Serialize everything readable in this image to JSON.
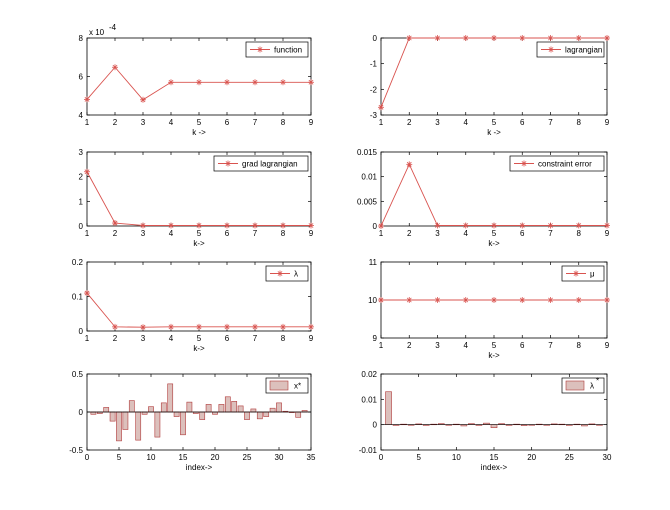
{
  "colors": {
    "line": "#d9534f",
    "bar_fill": "#dcc0bc",
    "bar_stroke": "#b03a3a",
    "axis": "#000000"
  },
  "chart_data": [
    {
      "type": "line",
      "id": "function",
      "x": [
        1,
        2,
        3,
        4,
        5,
        6,
        7,
        8,
        9
      ],
      "y": [
        0.000481,
        0.000648,
        0.000479,
        0.00057,
        0.00057,
        0.00057,
        0.00057,
        0.00057,
        0.00057
      ],
      "xlim": [
        1,
        9
      ],
      "ylim": [
        0.0004,
        0.0008
      ],
      "xticks": [
        1,
        2,
        3,
        4,
        5,
        6,
        7,
        8,
        9
      ],
      "xtick_labels": [
        "1",
        "2",
        "3",
        "4",
        "5",
        "6",
        "7",
        "8",
        "9"
      ],
      "yticks": [
        0.0004,
        0.0006,
        0.0008
      ],
      "ytick_labels": [
        "4",
        "6",
        "8"
      ],
      "exponent_label": "x 10",
      "exponent_power": "-4",
      "xlabel": "k ->",
      "legend": "function",
      "legend_position": "top-right"
    },
    {
      "type": "line",
      "id": "lagrangian",
      "x": [
        1,
        2,
        3,
        4,
        5,
        6,
        7,
        8,
        9
      ],
      "y": [
        -2.7,
        0,
        0,
        0,
        0,
        0,
        0,
        0,
        0
      ],
      "xlim": [
        1,
        9
      ],
      "ylim": [
        -3,
        0
      ],
      "xticks": [
        1,
        2,
        3,
        4,
        5,
        6,
        7,
        8,
        9
      ],
      "xtick_labels": [
        "1",
        "2",
        "3",
        "4",
        "5",
        "6",
        "7",
        "8",
        "9"
      ],
      "yticks": [
        -3,
        -2,
        -1,
        0
      ],
      "ytick_labels": [
        "-3",
        "-2",
        "-1",
        "0"
      ],
      "xlabel": "k ->",
      "legend": "lagrangian",
      "legend_position": "top-right"
    },
    {
      "type": "line",
      "id": "grad-lagrangian",
      "x": [
        1,
        2,
        3,
        4,
        5,
        6,
        7,
        8,
        9
      ],
      "y": [
        2.2,
        0.12,
        0.02,
        0.02,
        0.02,
        0.02,
        0.02,
        0.02,
        0.02
      ],
      "xlim": [
        1,
        9
      ],
      "ylim": [
        0,
        3
      ],
      "xticks": [
        1,
        2,
        3,
        4,
        5,
        6,
        7,
        8,
        9
      ],
      "xtick_labels": [
        "1",
        "2",
        "3",
        "4",
        "5",
        "6",
        "7",
        "8",
        "9"
      ],
      "yticks": [
        0,
        1,
        2,
        3
      ],
      "ytick_labels": [
        "0",
        "1",
        "2",
        "3"
      ],
      "xlabel": "k->",
      "legend": "grad lagrangian",
      "legend_position": "top-right"
    },
    {
      "type": "line",
      "id": "constraint-error",
      "x": [
        1,
        2,
        3,
        4,
        5,
        6,
        7,
        8,
        9
      ],
      "y": [
        0,
        0.0125,
        0.0001,
        0.0001,
        0.0001,
        0.0001,
        0.0001,
        0.0001,
        0.0001
      ],
      "xlim": [
        1,
        9
      ],
      "ylim": [
        0,
        0.015
      ],
      "xticks": [
        1,
        2,
        3,
        4,
        5,
        6,
        7,
        8,
        9
      ],
      "xtick_labels": [
        "1",
        "2",
        "3",
        "4",
        "5",
        "6",
        "7",
        "8",
        "9"
      ],
      "yticks": [
        0,
        0.005,
        0.01,
        0.015
      ],
      "ytick_labels": [
        "0",
        "0.005",
        "0.01",
        "0.015"
      ],
      "xlabel": "k->",
      "legend": "constraint error",
      "legend_position": "top-right"
    },
    {
      "type": "line",
      "id": "lambda",
      "x": [
        1,
        2,
        3,
        4,
        5,
        6,
        7,
        8,
        9
      ],
      "y": [
        0.11,
        0.012,
        0.011,
        0.012,
        0.012,
        0.012,
        0.012,
        0.012,
        0.012
      ],
      "xlim": [
        1,
        9
      ],
      "ylim": [
        0,
        0.2
      ],
      "xticks": [
        1,
        2,
        3,
        4,
        5,
        6,
        7,
        8,
        9
      ],
      "xtick_labels": [
        "1",
        "2",
        "3",
        "4",
        "5",
        "6",
        "7",
        "8",
        "9"
      ],
      "yticks": [
        0,
        0.1,
        0.2
      ],
      "ytick_labels": [
        "0",
        "0.1",
        "0.2"
      ],
      "xlabel": "k->",
      "legend": "λ",
      "legend_position": "top-right"
    },
    {
      "type": "line",
      "id": "mu",
      "x": [
        1,
        2,
        3,
        4,
        5,
        6,
        7,
        8,
        9
      ],
      "y": [
        10,
        10,
        10,
        10,
        10,
        10,
        10,
        10,
        10
      ],
      "xlim": [
        1,
        9
      ],
      "ylim": [
        9,
        11
      ],
      "xticks": [
        1,
        2,
        3,
        4,
        5,
        6,
        7,
        8,
        9
      ],
      "xtick_labels": [
        "1",
        "2",
        "3",
        "4",
        "5",
        "6",
        "7",
        "8",
        "9"
      ],
      "yticks": [
        9,
        10,
        11
      ],
      "ytick_labels": [
        "9",
        "10",
        "11"
      ],
      "xlabel": "k->",
      "legend": "μ",
      "legend_position": "top-right"
    },
    {
      "type": "bar",
      "id": "x-star",
      "x": [
        1,
        2,
        3,
        4,
        5,
        6,
        7,
        8,
        9,
        10,
        11,
        12,
        13,
        14,
        15,
        16,
        17,
        18,
        19,
        20,
        21,
        22,
        23,
        24,
        25,
        26,
        27,
        28,
        29,
        30,
        31,
        32,
        33,
        34
      ],
      "values": [
        -0.03,
        -0.02,
        0.06,
        -0.12,
        -0.38,
        -0.23,
        0.15,
        -0.37,
        -0.03,
        0.07,
        -0.33,
        0.12,
        0.37,
        -0.06,
        -0.3,
        0.13,
        -0.02,
        -0.1,
        0.1,
        -0.03,
        0.1,
        0.2,
        0.14,
        0.08,
        -0.1,
        0.04,
        -0.09,
        -0.06,
        0.05,
        0.12,
        0.01,
        0.0,
        -0.07,
        0.02
      ],
      "xlim": [
        0,
        35
      ],
      "ylim": [
        -0.5,
        0.5
      ],
      "xticks": [
        0,
        5,
        10,
        15,
        20,
        25,
        30,
        35
      ],
      "xtick_labels": [
        "0",
        "5",
        "10",
        "15",
        "20",
        "25",
        "30",
        "35"
      ],
      "yticks": [
        -0.5,
        0,
        0.5
      ],
      "ytick_labels": [
        "-0.5",
        "0",
        "0.5"
      ],
      "xlabel": "index->",
      "legend": "x*",
      "legend_position": "top-right"
    },
    {
      "type": "bar",
      "id": "lambda-star",
      "x": [
        1,
        2,
        3,
        4,
        5,
        6,
        7,
        8,
        9,
        10,
        11,
        12,
        13,
        14,
        15,
        16,
        17,
        18,
        19,
        20,
        21,
        22,
        23,
        24,
        25,
        26,
        27,
        28,
        29
      ],
      "values": [
        0.013,
        -0.0003,
        0.0002,
        -0.0002,
        0.0003,
        -0.0003,
        0.0002,
        0.0004,
        -0.0002,
        0.0002,
        -0.0005,
        0.0004,
        -0.0003,
        0.0006,
        -0.0012,
        0.0004,
        -0.0003,
        0.0002,
        -0.0004,
        0.0,
        0.0002,
        -0.0002,
        0.0003,
        0.0002,
        -0.0003,
        0.0002,
        -0.0005,
        0.0003,
        -0.0002
      ],
      "xlim": [
        0,
        30
      ],
      "ylim": [
        -0.01,
        0.02
      ],
      "xticks": [
        0,
        5,
        10,
        15,
        20,
        25,
        30
      ],
      "xtick_labels": [
        "0",
        "5",
        "10",
        "15",
        "20",
        "25",
        "30"
      ],
      "yticks": [
        -0.01,
        0,
        0.01,
        0.02
      ],
      "ytick_labels": [
        "-0.01",
        "0",
        "0.01",
        "0.02"
      ],
      "xlabel": "index->",
      "legend": "λ",
      "legend_sup": "*",
      "legend_position": "top-right"
    }
  ]
}
